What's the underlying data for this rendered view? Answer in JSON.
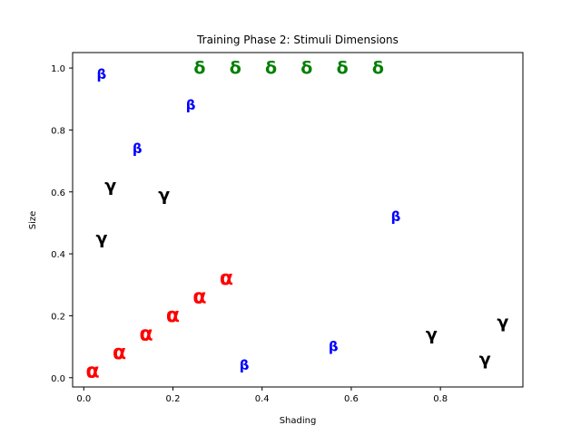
{
  "chart_data": {
    "type": "scatter",
    "title": "Training Phase 2: Stimuli Dimensions",
    "xlabel": "Shading",
    "ylabel": "Size",
    "xlim": [
      -0.025,
      0.985
    ],
    "ylim": [
      -0.03,
      1.05
    ],
    "xticks": [
      0.0,
      0.2,
      0.4,
      0.6,
      0.8
    ],
    "xtick_labels": [
      "0.0",
      "0.2",
      "0.4",
      "0.6",
      "0.8"
    ],
    "yticks": [
      0.0,
      0.2,
      0.4,
      0.6,
      0.8,
      1.0
    ],
    "ytick_labels": [
      "0.0",
      "0.2",
      "0.4",
      "0.6",
      "0.8",
      "1.0"
    ],
    "grid": false,
    "series": [
      {
        "marker": "α",
        "color": "#ff0000",
        "font_size": 22,
        "points": [
          {
            "x": 0.02,
            "y": 0.02
          },
          {
            "x": 0.08,
            "y": 0.08
          },
          {
            "x": 0.14,
            "y": 0.14
          },
          {
            "x": 0.2,
            "y": 0.2
          },
          {
            "x": 0.26,
            "y": 0.26
          },
          {
            "x": 0.32,
            "y": 0.32
          }
        ]
      },
      {
        "marker": "β",
        "color": "#0000ff",
        "font_size": 15,
        "points": [
          {
            "x": 0.04,
            "y": 0.98
          },
          {
            "x": 0.12,
            "y": 0.74
          },
          {
            "x": 0.24,
            "y": 0.88
          },
          {
            "x": 0.36,
            "y": 0.04
          },
          {
            "x": 0.56,
            "y": 0.1
          },
          {
            "x": 0.7,
            "y": 0.52
          }
        ]
      },
      {
        "marker": "γ",
        "color": "#000000",
        "font_size": 19,
        "points": [
          {
            "x": 0.06,
            "y": 0.62
          },
          {
            "x": 0.04,
            "y": 0.45
          },
          {
            "x": 0.18,
            "y": 0.59
          },
          {
            "x": 0.78,
            "y": 0.14
          },
          {
            "x": 0.9,
            "y": 0.06
          },
          {
            "x": 0.94,
            "y": 0.18
          }
        ]
      },
      {
        "marker": "δ",
        "color": "#008000",
        "font_size": 19,
        "points": [
          {
            "x": 0.26,
            "y": 1.0
          },
          {
            "x": 0.34,
            "y": 1.0
          },
          {
            "x": 0.42,
            "y": 1.0
          },
          {
            "x": 0.5,
            "y": 1.0
          },
          {
            "x": 0.58,
            "y": 1.0
          },
          {
            "x": 0.66,
            "y": 1.0
          }
        ]
      }
    ]
  }
}
